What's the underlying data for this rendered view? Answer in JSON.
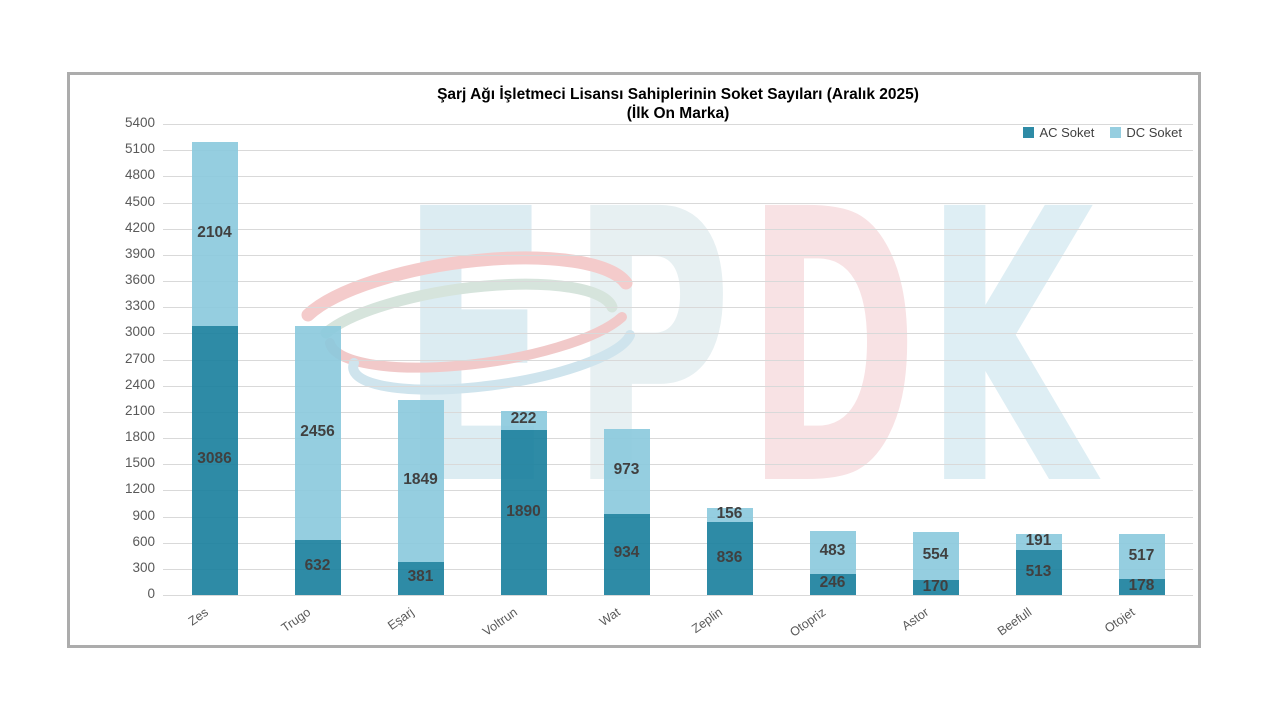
{
  "chart_data": {
    "type": "bar",
    "stacked": true,
    "title": "Şarj Ağı İşletmeci Lisansı Sahiplerinin Soket Sayıları (Aralık 2025)",
    "subtitle": "(İlk On Marka)",
    "categories": [
      "Zes",
      "Trugo",
      "Eşarj",
      "Voltrun",
      "Wat",
      "Zeplin",
      "Otopriz",
      "Astor",
      "Beefull",
      "Otojet"
    ],
    "series": [
      {
        "name": "AC Soket",
        "color": "#2E8BA6",
        "values": [
          3086,
          632,
          381,
          1890,
          934,
          836,
          246,
          170,
          513,
          178
        ]
      },
      {
        "name": "DC Soket",
        "color": "#96CEE0",
        "values": [
          2104,
          2456,
          1849,
          222,
          973,
          156,
          483,
          554,
          191,
          517
        ]
      }
    ],
    "ylim": [
      0,
      5400
    ],
    "yticks": [
      0,
      300,
      600,
      900,
      1200,
      1500,
      1800,
      2100,
      2400,
      2700,
      3000,
      3300,
      3600,
      3900,
      4200,
      4500,
      4800,
      5100,
      5400
    ],
    "grid": true,
    "legend_position": "top-right",
    "colors": {
      "bar_value_text": "#404040",
      "axis_text": "#595959",
      "gridline": "#D9D9D9",
      "frame_border": "#ACACAC",
      "title_text": "#000000"
    }
  },
  "watermark": {
    "letters": [
      {
        "char": "E",
        "color": "#DCECF2"
      },
      {
        "char": "P",
        "color": "#E7F0F2"
      },
      {
        "char": "D",
        "color": "#F8E2E4"
      },
      {
        "char": "K",
        "color": "#DEEEF4"
      }
    ],
    "swirl_colors": [
      "#F4CBCB",
      "#D6E4DC",
      "#F1C9C9",
      "#CFE4ED"
    ]
  }
}
